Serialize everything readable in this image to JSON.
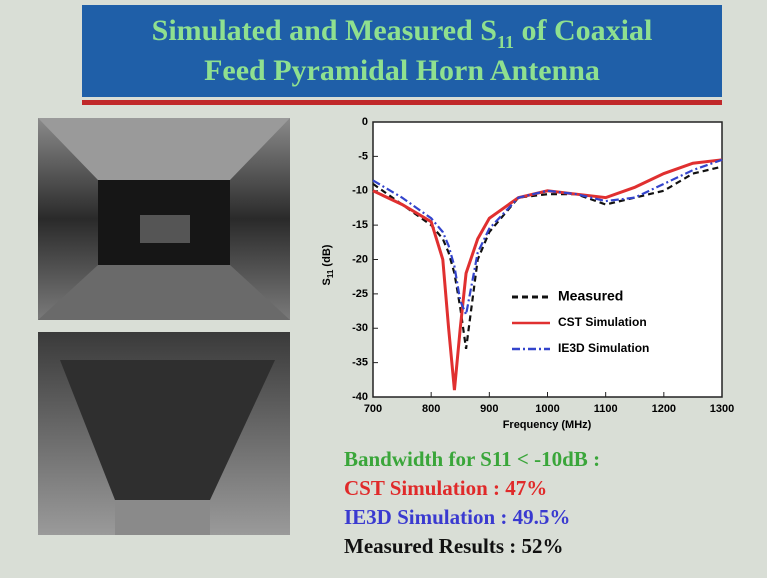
{
  "slide": {
    "title_line1_pre": "Simulated and Measured S",
    "title_line1_sub": "11",
    "title_line1_post": " of Coaxial",
    "title_line2": "Feed Pyramidal Horn Antenna",
    "notes": [
      {
        "text": "Bandwidth for S11 < -10dB :",
        "color": "#3aa63a"
      },
      {
        "text": "CST Simulation : 47%",
        "color": "#e02a2a"
      },
      {
        "text": "IE3D Simulation : 49.5%",
        "color": "#3a3ad0"
      },
      {
        "text": "Measured Results : 52%",
        "color": "#111111"
      }
    ]
  },
  "chart_data": {
    "type": "line",
    "y_label_main": "S",
    "y_label_sub": "11",
    "y_label_unit": " (dB)",
    "x_label": "Frequency (MHz)",
    "x": [
      700,
      750,
      800,
      820,
      830,
      840,
      850,
      860,
      880,
      900,
      950,
      1000,
      1050,
      1100,
      1150,
      1200,
      1250,
      1300
    ],
    "series": [
      {
        "name": "Measured",
        "color": "#111111",
        "dash": "6,4",
        "values": [
          -9,
          -12,
          -15,
          -17,
          -19,
          -22,
          -27,
          -33,
          -20,
          -16,
          -11,
          -10.5,
          -10.5,
          -12,
          -11,
          -10,
          -7.5,
          -6.5
        ]
      },
      {
        "name": "CST Simulation",
        "color": "#e03030",
        "dash": "none",
        "values": [
          -10,
          -12,
          -14.5,
          -20,
          -30,
          -39,
          -30,
          -22,
          -17,
          -14,
          -11,
          -10,
          -10.5,
          -11,
          -9.5,
          -7.5,
          -6,
          -5.5
        ]
      },
      {
        "name": "IE3D Simulation",
        "color": "#3344cc",
        "dash": "8,3,2,3",
        "values": [
          -8.5,
          -11,
          -14,
          -16,
          -18,
          -21,
          -26,
          -28,
          -19,
          -15.5,
          -11,
          -10,
          -10.5,
          -11.5,
          -11,
          -9,
          -7,
          -5.5
        ]
      }
    ],
    "xlim": [
      700,
      1300
    ],
    "ylim": [
      -40,
      0
    ],
    "xticks": [
      700,
      800,
      900,
      1000,
      1100,
      1200,
      1300
    ],
    "yticks": [
      0,
      -5,
      -10,
      -15,
      -20,
      -25,
      -30,
      -35,
      -40
    ],
    "legend": "lower-right"
  }
}
